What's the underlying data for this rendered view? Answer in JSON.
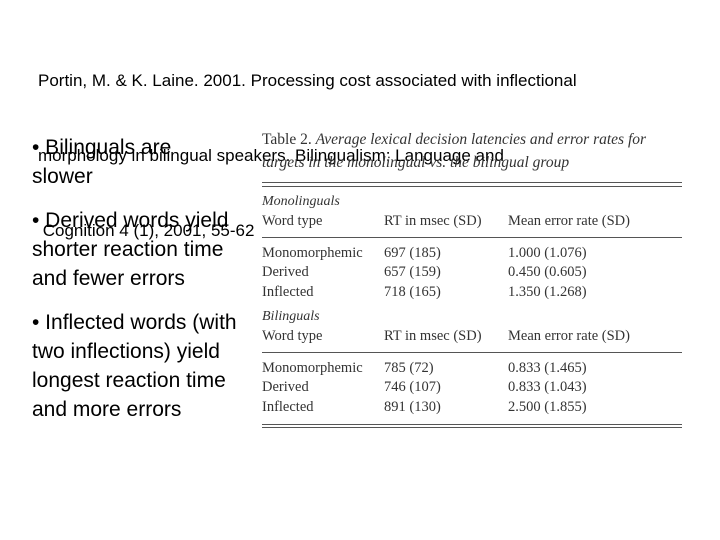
{
  "citation": {
    "line1": "Portin, M. & K. Laine. 2001. Processing cost associated with inflectional",
    "line2": "morphology in bilingual speakers. Bilingualism: Language and",
    "line3": " Cognition 4 (1), 2001, 55-62"
  },
  "bullets": [
    "• Bilinguals are slower",
    "• Derived words yield shorter reaction time and fewer errors",
    "• Inflected words (with two inflections) yield longest reaction time and more errors"
  ],
  "table": {
    "caption_num": "Table 2.",
    "caption_text": "Average lexical decision latencies and error rates for targets in the monolingual vs. the bilingual group",
    "columns": [
      "Word type",
      "RT in msec (SD)",
      "Mean error rate (SD)"
    ],
    "groups": [
      {
        "label": "Monolinguals",
        "rows": [
          [
            "Monomorphemic",
            "697 (185)",
            "1.000 (1.076)"
          ],
          [
            "Derived",
            "657 (159)",
            "0.450 (0.605)"
          ],
          [
            "Inflected",
            "718 (165)",
            "1.350 (1.268)"
          ]
        ]
      },
      {
        "label": "Bilinguals",
        "rows": [
          [
            "Monomorphemic",
            "785 (72)",
            "0.833 (1.465)"
          ],
          [
            "Derived",
            "746 (107)",
            "0.833 (1.043)"
          ],
          [
            "Inflected",
            "891 (130)",
            "2.500 (1.855)"
          ]
        ]
      }
    ]
  }
}
